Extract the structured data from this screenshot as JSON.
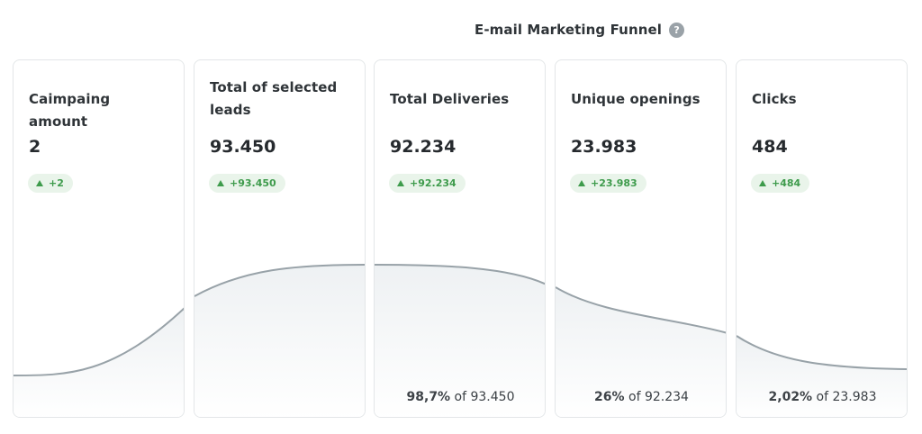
{
  "header": {
    "title": "E-mail Marketing Funnel",
    "help_glyph": "?",
    "help_icon": "question-circle-icon"
  },
  "colors": {
    "curve_stroke": "#98a2a8",
    "badge_bg": "#e9f4ea",
    "badge_text": "#3e9b4c",
    "card_border": "#e3e6e8"
  },
  "cards": [
    {
      "title": "Caimpaing amount",
      "value": "2",
      "delta": "+2",
      "delta_icon": "triangle-up-icon",
      "footer_pct": "",
      "footer_rest": ""
    },
    {
      "title": "Total of selected leads",
      "value": "93.450",
      "delta": "+93.450",
      "delta_icon": "triangle-up-icon",
      "footer_pct": "",
      "footer_rest": ""
    },
    {
      "title": "Total Deliveries",
      "value": "92.234",
      "delta": "+92.234",
      "delta_icon": "triangle-up-icon",
      "footer_pct": "98,7%",
      "footer_rest": " of 93.450"
    },
    {
      "title": "Unique openings",
      "value": "23.983",
      "delta": "+23.983",
      "delta_icon": "triangle-up-icon",
      "footer_pct": "26%",
      "footer_rest": " of 92.234"
    },
    {
      "title": "Clicks",
      "value": "484",
      "delta": "+484",
      "delta_icon": "triangle-up-icon",
      "footer_pct": "2,02%",
      "footer_rest": " of 23.983"
    }
  ]
}
